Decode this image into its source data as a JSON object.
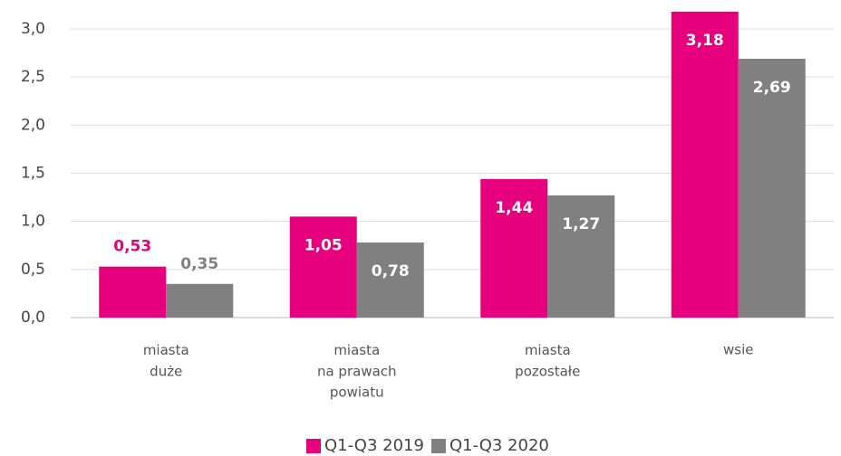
{
  "chart_data": {
    "type": "bar",
    "categories": [
      "miasta\nduże",
      "miasta\nna prawach\npowiatu",
      "miasta\npozostałe",
      "wsie"
    ],
    "series": [
      {
        "name": "Q1-Q3 2019",
        "color": "#e6007e",
        "values": [
          0.53,
          1.05,
          1.44,
          3.18
        ],
        "value_labels": [
          "0,53",
          "1,05",
          "1,44",
          "3,18"
        ]
      },
      {
        "name": "Q1-Q3 2020",
        "color": "#808080",
        "values": [
          0.35,
          0.78,
          1.27,
          2.69
        ],
        "value_labels": [
          "0,35",
          "0,78",
          "1,27",
          "2,69"
        ]
      }
    ],
    "ylim": [
      0,
      3.0
    ],
    "yticks": [
      {
        "value": 0,
        "label": "0,0"
      },
      {
        "value": 0.5,
        "label": "0,5"
      },
      {
        "value": 1.0,
        "label": "1,0"
      },
      {
        "value": 1.5,
        "label": "1,5"
      },
      {
        "value": 2.0,
        "label": "2,0"
      },
      {
        "value": 2.5,
        "label": "2,5"
      },
      {
        "value": 3.0,
        "label": "3,0"
      }
    ],
    "grid": true,
    "legend": "bottom"
  }
}
